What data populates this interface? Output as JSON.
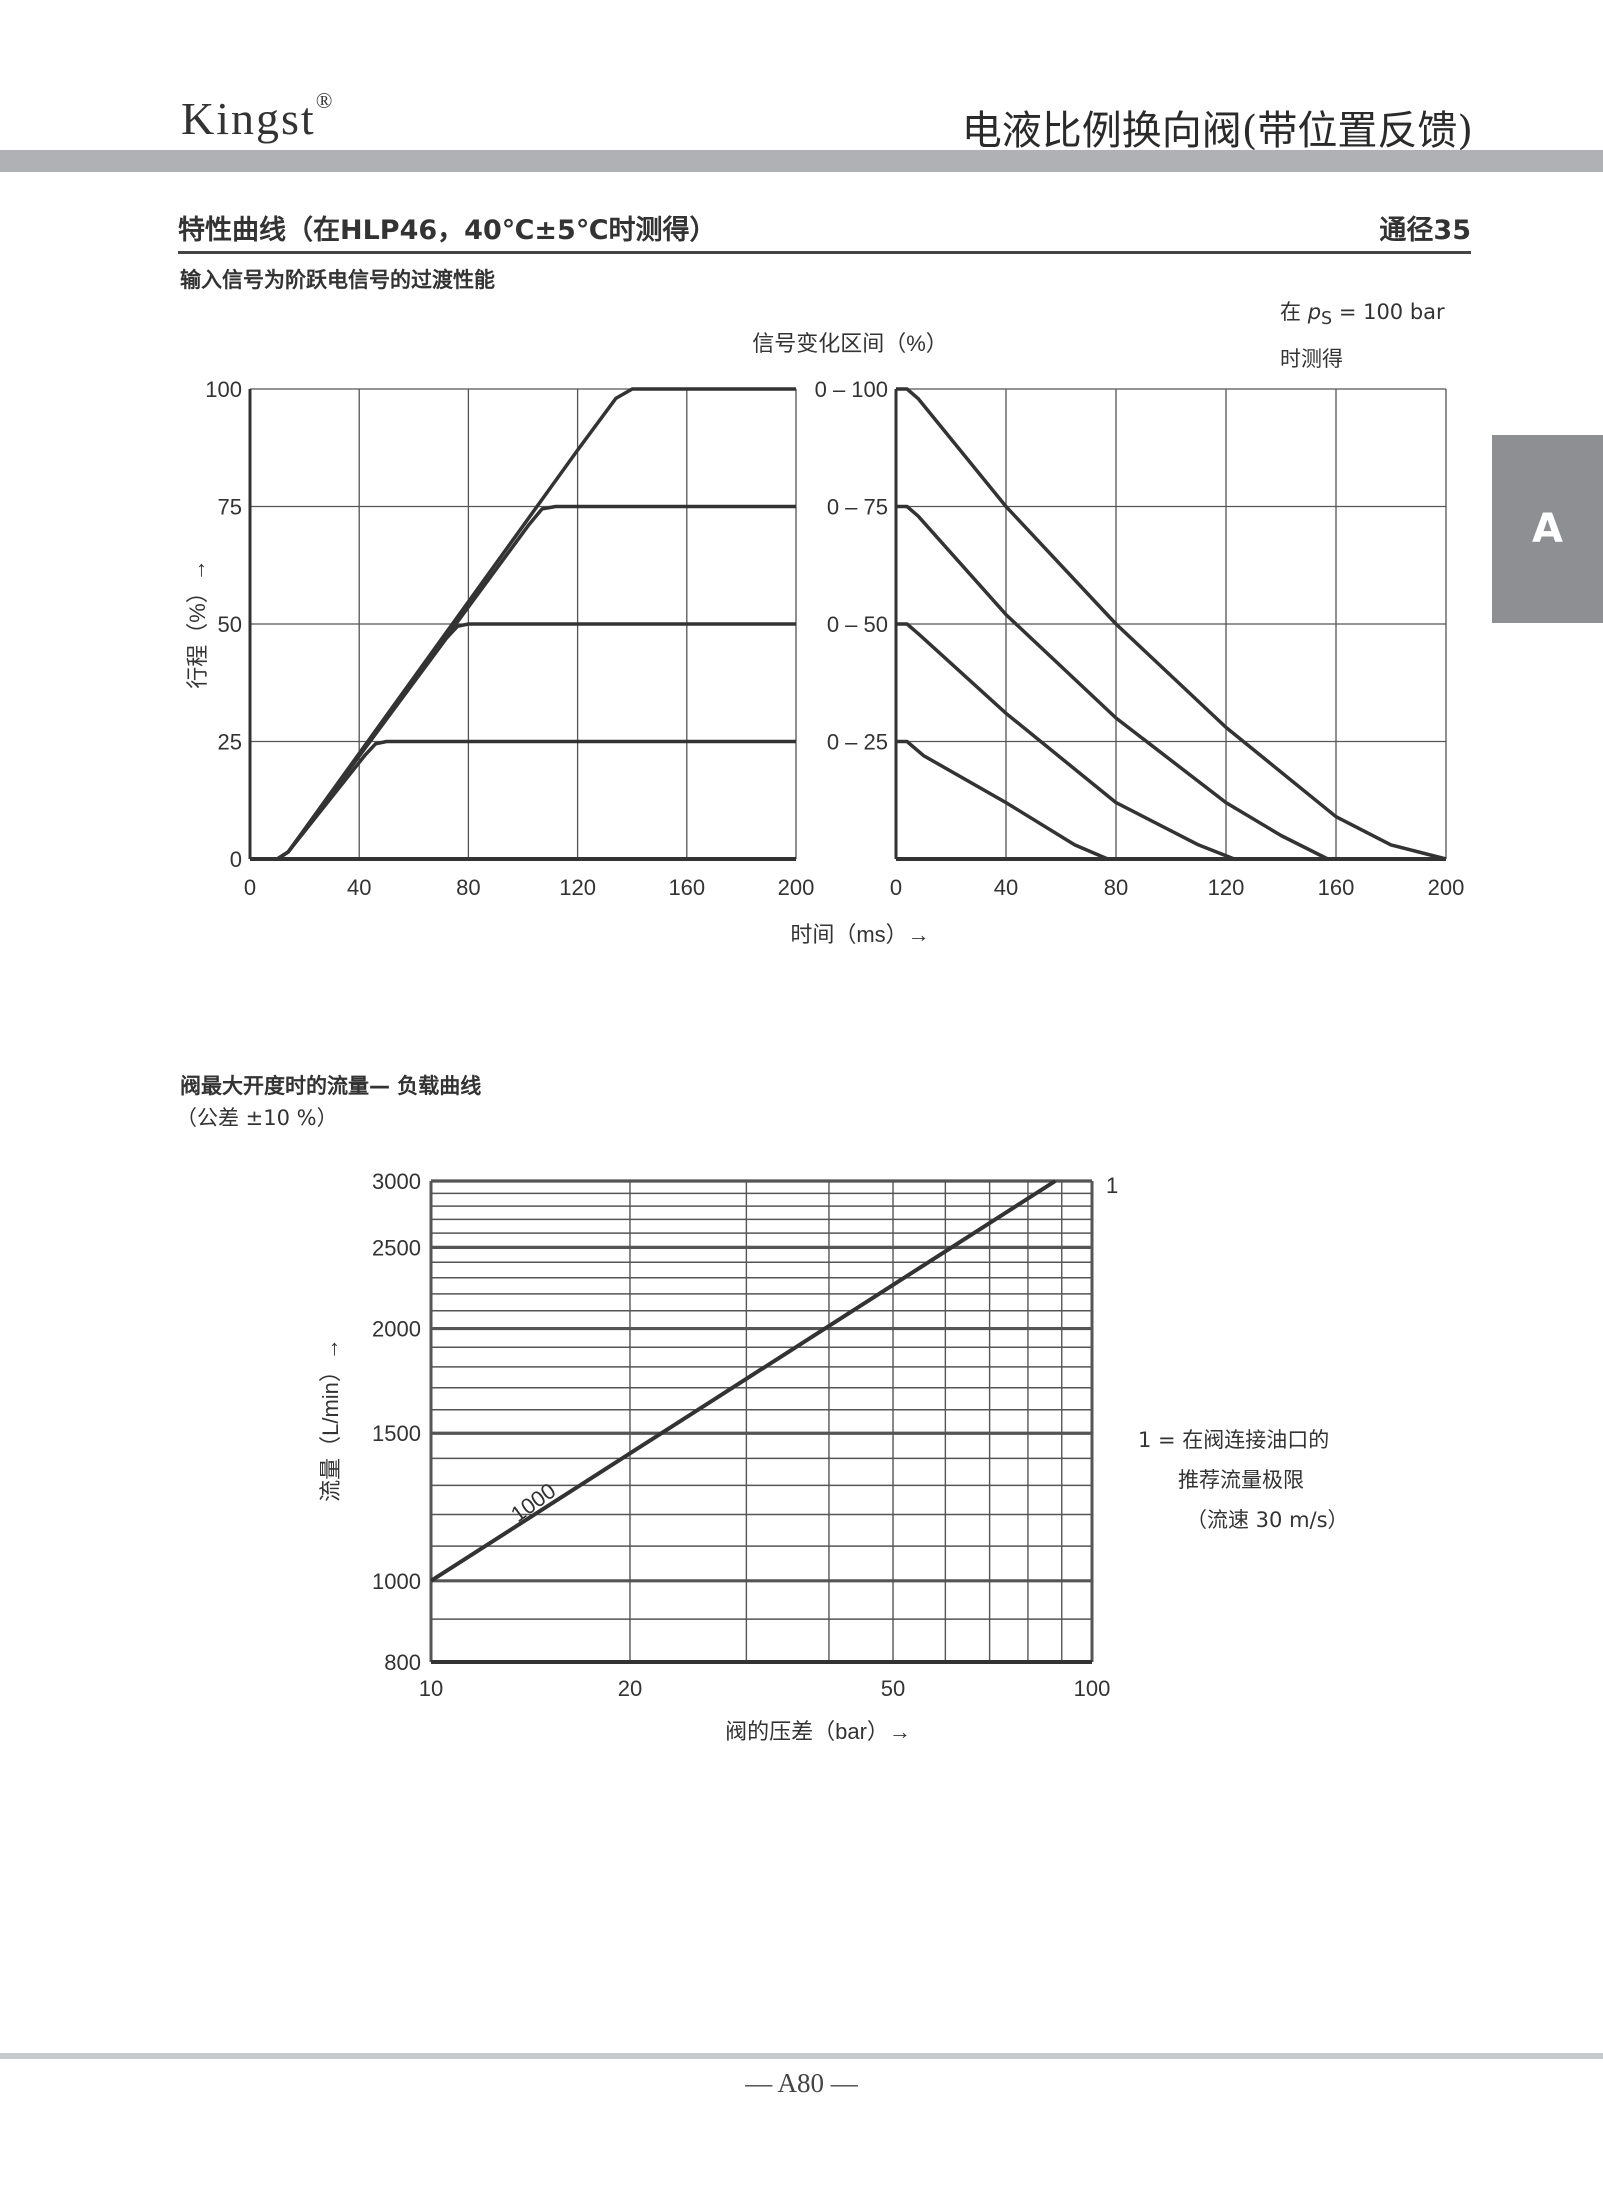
{
  "header": {
    "brand": "Kingst",
    "brand_mark": "®",
    "title": "电液比例换向阀(带位置反馈)"
  },
  "section": {
    "title": "特性曲线（在HLP46，40℃±5℃时测得）",
    "size": "通径35",
    "side_tab": "A"
  },
  "chart1_title": "输入信号为阶跃电信号的过渡性能",
  "chart1_note": {
    "line1_prefix": "在",
    "line1_var": "p",
    "line1_sub": "S",
    "line1_suffix": " = 100 bar",
    "line2": "时测得"
  },
  "chart_data": [
    {
      "type": "line",
      "title": "",
      "xlabel": "时间（ms）→",
      "ylabel": "行程（%）→",
      "xlim": [
        0,
        200
      ],
      "ylim": [
        0,
        100
      ],
      "x_ticks": [
        "0",
        "40",
        "80",
        "120",
        "160",
        "200"
      ],
      "y_ticks": [
        "0",
        "25",
        "50",
        "75",
        "100"
      ],
      "grid": true,
      "series": [
        {
          "points": [
            [
              0,
              0
            ],
            [
              10,
              0
            ],
            [
              14,
              1.5
            ],
            [
              42,
              22
            ],
            [
              46,
              24.5
            ],
            [
              50,
              25
            ],
            [
              200,
              25
            ]
          ]
        },
        {
          "points": [
            [
              0,
              0
            ],
            [
              10,
              0
            ],
            [
              14,
              1.5
            ],
            [
              72,
              47
            ],
            [
              76,
              49.5
            ],
            [
              80,
              50
            ],
            [
              200,
              50
            ]
          ]
        },
        {
          "points": [
            [
              0,
              0
            ],
            [
              10,
              0
            ],
            [
              14,
              1.5
            ],
            [
              102,
              71
            ],
            [
              107,
              74.5
            ],
            [
              112,
              75
            ],
            [
              200,
              75
            ]
          ]
        },
        {
          "points": [
            [
              0,
              0
            ],
            [
              10,
              0
            ],
            [
              14,
              1.5
            ],
            [
              120,
              87
            ],
            [
              134,
              98
            ],
            [
              140,
              100
            ],
            [
              200,
              100
            ]
          ]
        }
      ]
    },
    {
      "type": "line",
      "title": "信号变化区间（%）",
      "xlabel": "",
      "xlim": [
        0,
        200
      ],
      "ylim": [
        0,
        100
      ],
      "x_ticks": [
        "0",
        "40",
        "80",
        "120",
        "160",
        "200"
      ],
      "y_ticks": [
        "0 – 25",
        "0 – 50",
        "0 – 75",
        "0 – 100"
      ],
      "y_tick_values": [
        25,
        50,
        75,
        100
      ],
      "grid": true,
      "series": [
        {
          "name": "0 – 100",
          "points": [
            [
              0,
              100
            ],
            [
              4,
              100
            ],
            [
              8,
              98
            ],
            [
              40,
              75
            ],
            [
              80,
              50
            ],
            [
              120,
              28
            ],
            [
              160,
              9
            ],
            [
              180,
              3
            ],
            [
              200,
              0
            ]
          ]
        },
        {
          "name": "0 – 75",
          "points": [
            [
              0,
              75
            ],
            [
              4,
              75
            ],
            [
              8,
              73
            ],
            [
              40,
              52
            ],
            [
              80,
              30
            ],
            [
              120,
              12
            ],
            [
              140,
              5
            ],
            [
              157,
              0
            ]
          ]
        },
        {
          "name": "0 – 50",
          "points": [
            [
              0,
              50
            ],
            [
              4,
              50
            ],
            [
              8,
              48
            ],
            [
              40,
              31
            ],
            [
              80,
              12
            ],
            [
              110,
              3
            ],
            [
              123,
              0
            ]
          ]
        },
        {
          "name": "0 – 25",
          "points": [
            [
              0,
              25
            ],
            [
              4,
              25
            ],
            [
              10,
              22
            ],
            [
              40,
              12
            ],
            [
              65,
              3
            ],
            [
              77,
              0
            ]
          ]
        }
      ]
    },
    {
      "type": "line",
      "title": "阀最大开度时的流量— 负载曲线",
      "subtitle": "（公差 ±10 %）",
      "xlabel": "阀的压差（bar）→",
      "ylabel": "流量（L/min）→",
      "x_scale": "log",
      "y_scale": "log",
      "xlim": [
        10,
        100
      ],
      "ylim": [
        800,
        3000
      ],
      "x_ticks": [
        "10",
        "20",
        "50",
        "100"
      ],
      "y_ticks": [
        "800",
        "1000",
        "1500",
        "2000",
        "2500",
        "3000"
      ],
      "grid": true,
      "series": [
        {
          "name": "1000",
          "points": [
            [
              10,
              1000
            ],
            [
              88,
              3000
            ]
          ]
        }
      ],
      "annotations": {
        "limit_marker": "1",
        "legend_line1": "1 = 在阀连接油口的",
        "legend_line2": "推荐流量极限",
        "legend_line3": "（流速 30 m/s）"
      }
    }
  ],
  "colors": {
    "line": "#333333",
    "grid": "#555555",
    "bar": "#b0b1b4",
    "tab": "#8e8f92"
  },
  "footer": {
    "page": "— A80 —"
  }
}
